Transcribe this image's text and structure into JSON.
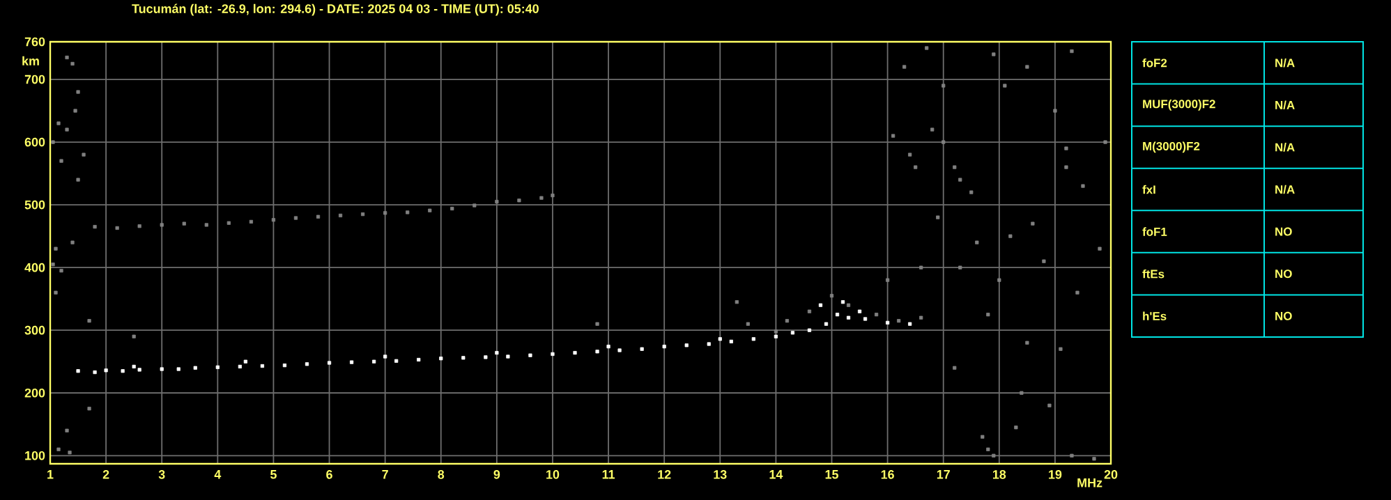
{
  "chart_data": [
    {
      "type": "scatter",
      "title": "Tucumán (lat: -26.9, lon: 294.6) - DATE: 2025 04 03 - TIME (UT): 05:40",
      "xlabel": "MHz",
      "ylabel": "km",
      "xlim": [
        1,
        20
      ],
      "xticks": [
        1,
        2,
        3,
        4,
        5,
        6,
        7,
        8,
        9,
        10,
        11,
        12,
        13,
        14,
        15,
        16,
        17,
        18,
        19,
        20
      ],
      "ylim": [
        87,
        760
      ],
      "yticks": [
        100,
        200,
        300,
        400,
        500,
        600,
        700,
        760
      ],
      "grid": true,
      "marker": "square",
      "series": [
        {
          "color": "#ffffff",
          "x": [
            1.5,
            1.8,
            2.0,
            2.3,
            2.6,
            3.0,
            3.3,
            3.6,
            4.0,
            4.4,
            4.8,
            5.2,
            5.6,
            6.0,
            6.4,
            6.8,
            7.2,
            7.6,
            8.0,
            8.4,
            8.8,
            9.2,
            9.6,
            10.0,
            10.4,
            10.8,
            11.2,
            11.6,
            12.0,
            12.4,
            12.8,
            13.2,
            13.6,
            14.0,
            14.3,
            14.6,
            14.9,
            15.1,
            15.3,
            15.6,
            16.0,
            16.4,
            2.5,
            4.5,
            7.0,
            9.0,
            11.0,
            13.0,
            14.8,
            15.2,
            15.5
          ],
          "values": [
            235,
            233,
            236,
            235,
            237,
            238,
            238,
            240,
            241,
            242,
            243,
            244,
            246,
            248,
            249,
            250,
            251,
            253,
            255,
            256,
            257,
            258,
            260,
            262,
            264,
            266,
            268,
            270,
            274,
            276,
            278,
            282,
            286,
            290,
            296,
            300,
            310,
            325,
            320,
            318,
            312,
            310,
            242,
            250,
            258,
            264,
            274,
            286,
            340,
            345,
            330
          ]
        },
        {
          "color": "#808080",
          "x": [
            1.8,
            2.2,
            2.6,
            3.0,
            3.4,
            3.8,
            4.2,
            4.6,
            5.0,
            5.4,
            5.8,
            6.2,
            6.6,
            7.0,
            7.4,
            7.8,
            8.2,
            8.6,
            9.0,
            9.4,
            9.8,
            10.0
          ],
          "values": [
            465,
            463,
            466,
            468,
            470,
            468,
            471,
            473,
            476,
            479,
            481,
            483,
            485,
            487,
            488,
            491,
            494,
            499,
            505,
            507,
            511,
            515
          ]
        },
        {
          "color": "#808080",
          "x": [
            1.05,
            1.15,
            1.2,
            1.3,
            1.5,
            1.45,
            1.6,
            1.1,
            1.2,
            1.05,
            1.4,
            1.5,
            1.3,
            1.4,
            1.1,
            1.3,
            1.35,
            1.15,
            1.7,
            1.7,
            2.5,
            10.8,
            14.0,
            13.5,
            14.2,
            14.6,
            15.0,
            15.3,
            15.8,
            16.2,
            16.6,
            13.3,
            16.0,
            16.3,
            16.7,
            17.0,
            16.8,
            16.1,
            16.4,
            17.2,
            16.5,
            17.3,
            17.5,
            16.9,
            17.6,
            18.2,
            18.6,
            19.2,
            19.5,
            19.8,
            18.8,
            17.3,
            18.0,
            19.4,
            17.8,
            18.5,
            19.1,
            17.2,
            18.4,
            18.9,
            17.7,
            17.8,
            17.9,
            18.3,
            19.3,
            19.7,
            18.1,
            18.5,
            19.3,
            17.9,
            19.0,
            19.9,
            19.2,
            16.6,
            17.0
          ],
          "values": [
            600,
            630,
            570,
            620,
            680,
            650,
            580,
            430,
            395,
            405,
            440,
            540,
            735,
            725,
            360,
            140,
            105,
            110,
            175,
            315,
            290,
            310,
            298,
            310,
            315,
            330,
            355,
            340,
            325,
            315,
            320,
            345,
            380,
            720,
            750,
            690,
            620,
            610,
            580,
            560,
            560,
            540,
            520,
            480,
            440,
            450,
            470,
            560,
            530,
            430,
            410,
            400,
            380,
            360,
            325,
            280,
            270,
            240,
            200,
            180,
            130,
            110,
            100,
            145,
            100,
            95,
            690,
            720,
            745,
            740,
            650,
            600,
            590,
            400,
            600
          ]
        }
      ]
    },
    {
      "type": "other",
      "categories": [
        "foF2",
        "MUF(3000)F2",
        "M(3000)F2",
        "fxI",
        "foF1",
        "ftEs",
        "h'Es"
      ],
      "value_labels": [
        "N/A",
        "N/A",
        "N/A",
        "N/A",
        "NO",
        "NO",
        "NO"
      ]
    }
  ]
}
